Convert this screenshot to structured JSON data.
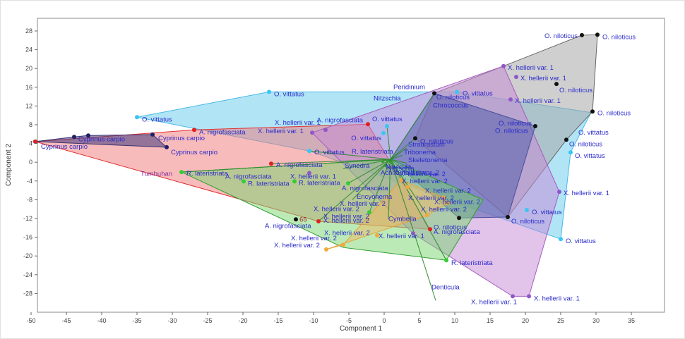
{
  "chart_data": {
    "type": "scatter",
    "title": "",
    "xlabel": "Component 1",
    "ylabel": "Component 2",
    "xlim": [
      -49.1,
      39.7
    ],
    "ylim": [
      -32.0,
      30.7
    ],
    "x_ticks": [
      -50,
      -45,
      -40,
      -35,
      -30,
      -25,
      -20,
      -15,
      -10,
      -5,
      0,
      5,
      10,
      15,
      20,
      25,
      30,
      35
    ],
    "y_ticks": [
      28,
      24,
      20,
      16,
      12,
      8,
      4,
      0,
      -4,
      -8,
      -12,
      -16,
      -20,
      -24,
      -28
    ],
    "grid": false,
    "label_color": "#2a2acb",
    "axis_color": "#444444",
    "frame_color": "#8a8a8a",
    "spoke_color": "#2e8b2e",
    "hulls": [
      {
        "name": "O. vittatus",
        "fill": "rgba(125,211,240,0.60)",
        "stroke": "#49b8e6",
        "pts": [
          [
            -35.0,
            9.6
          ],
          [
            -16.3,
            15.0
          ],
          [
            10.3,
            15.0
          ],
          [
            29.3,
            10.6
          ],
          [
            26.4,
            2.1
          ],
          [
            25.0,
            -16.4
          ],
          [
            -10.6,
            2.4
          ]
        ]
      },
      {
        "name": "A. nigrofasciata",
        "fill": "rgba(242,120,120,0.50)",
        "stroke": "#e03030",
        "pts": [
          [
            -49.4,
            4.4
          ],
          [
            -26.9,
            6.9
          ],
          [
            -2.3,
            8.1
          ],
          [
            6.5,
            -14.3
          ],
          [
            -9.3,
            -12.6
          ]
        ]
      },
      {
        "name": "Cyprinus carpio",
        "fill": "rgba(66,59,124,0.55)",
        "stroke": "#3a3470",
        "pts": [
          [
            -49.4,
            4.4
          ],
          [
            -43.9,
            5.4
          ],
          [
            -41.9,
            5.7
          ],
          [
            -32.8,
            5.9
          ],
          [
            -30.8,
            3.2
          ]
        ]
      },
      {
        "name": "O. niloticus",
        "fill": "rgba(168,168,168,0.55)",
        "stroke": "#666666",
        "pts": [
          [
            7.1,
            14.7
          ],
          [
            28.0,
            27.1
          ],
          [
            30.2,
            27.2
          ],
          [
            29.5,
            10.8
          ],
          [
            25.8,
            4.8
          ],
          [
            17.5,
            -11.7
          ],
          [
            4.4,
            5.1
          ]
        ]
      },
      {
        "name": "X. hellerii var. 1",
        "fill": "rgba(198,136,214,0.50)",
        "stroke": "#a65bc0",
        "pts": [
          [
            -10.2,
            6.3
          ],
          [
            16.9,
            20.5
          ],
          [
            24.8,
            -6.3
          ],
          [
            20.5,
            -28.6
          ],
          [
            18.2,
            -28.6
          ],
          [
            4.1,
            -15.2
          ]
        ]
      },
      {
        "name": "mixed-indigo",
        "fill": "rgba(88,94,172,0.55)",
        "stroke": "#4a4f9e",
        "pts": [
          [
            7.1,
            14.7
          ],
          [
            21.4,
            7.7
          ],
          [
            17.5,
            -11.7
          ],
          [
            10.6,
            -11.9
          ],
          [
            0.9,
            0.6
          ]
        ]
      },
      {
        "name": "R. lateristriata",
        "fill": "rgba(120,214,112,0.50)",
        "stroke": "#2f9e2f",
        "pts": [
          [
            -28.7,
            -2.1
          ],
          [
            0.9,
            0.6
          ],
          [
            14.0,
            -8.0
          ],
          [
            8.8,
            -20.9
          ],
          [
            -5.8,
            -18.2
          ]
        ]
      },
      {
        "name": "X. hellerii var. 2",
        "fill": "rgba(247,181,92,0.45)",
        "stroke": "#e8a23a",
        "pts": [
          [
            2.4,
            -3.8
          ],
          [
            8.4,
            -7.5
          ],
          [
            9.0,
            -8.7
          ],
          [
            6.1,
            -11.3
          ],
          [
            -8.2,
            -18.6
          ],
          [
            -5.8,
            -17.6
          ]
        ]
      }
    ],
    "spokes": {
      "hub": [
        0.9,
        0.6
      ],
      "targets": [
        [
          7.1,
          14.7
        ],
        [
          4.4,
          5.1
        ],
        [
          0.4,
          7.7
        ],
        [
          -10.6,
          2.4
        ],
        [
          -16.0,
          -0.3
        ],
        [
          -28.7,
          -2.1
        ],
        [
          -5.8,
          -1.4
        ],
        [
          -5.1,
          -4.5
        ],
        [
          -4.5,
          -8.0
        ],
        [
          0.6,
          -12.0
        ],
        [
          -9.3,
          -12.6
        ],
        [
          -2.1,
          -10.7
        ],
        [
          6.1,
          -11.3
        ],
        [
          8.8,
          -20.9
        ],
        [
          7.3,
          -29.5
        ],
        [
          3.2,
          3.0
        ],
        [
          2.6,
          1.5
        ],
        [
          3.2,
          -0.2
        ]
      ]
    },
    "groups": [
      {
        "name": "O. vittatus",
        "marker_color": "#38c6f4",
        "points": [
          [
            -35.0,
            9.6,
            "O. vittatus",
            7,
            6,
            "start"
          ],
          [
            -16.3,
            15.0,
            "O. vittatus",
            7,
            6,
            "start"
          ],
          [
            10.3,
            15.0,
            "O. vittatus",
            8,
            5,
            "start"
          ],
          [
            -10.6,
            2.4,
            "O. vittatus",
            7,
            5,
            "start"
          ],
          [
            0.4,
            7.7,
            "O. vittatus",
            -21,
            -7,
            "start"
          ],
          [
            -0.1,
            6.2,
            "O. vittatus",
            -3,
            10,
            "end"
          ],
          [
            26.4,
            2.1,
            "O. vittatus",
            6,
            8,
            "start"
          ],
          [
            20.2,
            -10.2,
            "O. vittatus",
            7,
            6,
            "start"
          ],
          [
            25.0,
            -16.4,
            "O. vittatus",
            7,
            6,
            "start"
          ]
        ]
      },
      {
        "name": "Cyprinus carpio",
        "marker_color": "#1f1f66",
        "points": [
          [
            -49.4,
            4.4,
            "Cyprinus carpio",
            8,
            10,
            "start"
          ],
          [
            -43.9,
            5.4,
            "Cyprinus carpio",
            6,
            6,
            "start"
          ],
          [
            -41.9,
            5.7,
            null,
            0,
            0,
            "start"
          ],
          [
            -32.8,
            5.9,
            "Cyprinus carpio",
            8,
            8,
            "start"
          ],
          [
            -30.8,
            3.2,
            "Cyprinus carpio",
            6,
            10,
            "start"
          ]
        ]
      },
      {
        "name": "O. niloticus",
        "marker_color": "#111111",
        "points": [
          [
            28.0,
            27.1,
            "O. niloticus",
            -6,
            4,
            "end"
          ],
          [
            30.2,
            27.2,
            "O. niloticus",
            7,
            6,
            "start"
          ],
          [
            24.4,
            16.7,
            "O. niloticus",
            4,
            12,
            "start"
          ],
          [
            29.5,
            10.8,
            "O. niloticus",
            7,
            5,
            "start"
          ],
          [
            21.4,
            7.7,
            "O. niloticus",
            -5,
            -1,
            "end"
          ],
          [
            25.8,
            4.8,
            "O. niloticus",
            4,
            9,
            "start"
          ],
          [
            7.1,
            14.7,
            null,
            0,
            0,
            "start"
          ],
          [
            4.4,
            5.1,
            "O. niloticus",
            7,
            7,
            "start"
          ],
          [
            17.5,
            -11.7,
            "O. niloticus",
            5,
            9,
            "start"
          ],
          [
            10.6,
            -11.9,
            null,
            0,
            0,
            "start"
          ],
          [
            -12.5,
            -12.2,
            "65",
            5,
            3,
            "start",
            "#a02020"
          ]
        ]
      },
      {
        "name": "A. nigrofasciata",
        "marker_color": "#e02020",
        "points": [
          [
            -49.4,
            4.4,
            null,
            0,
            0,
            "start"
          ],
          [
            -26.9,
            6.9,
            "A. nigrofasciata",
            7,
            6,
            "start"
          ],
          [
            -2.3,
            8.1,
            "A. nigrofasciata",
            -7,
            -3,
            "end"
          ],
          [
            -16.0,
            -0.3,
            "A. nigrofasciata",
            7,
            5,
            "start"
          ],
          [
            -9.3,
            -12.6,
            "X. hellerii var. 2",
            7,
            2,
            "start"
          ],
          [
            6.5,
            -14.3,
            "O. niloticus",
            5,
            0,
            "start"
          ]
        ]
      },
      {
        "name": "X. hellerii var. 1",
        "marker_color": "#9256c8",
        "points": [
          [
            -10.2,
            6.3,
            null,
            0,
            0,
            "start"
          ],
          [
            -8.3,
            6.9,
            null,
            0,
            0,
            "start"
          ],
          [
            -10.6,
            -2.3,
            null,
            0,
            0,
            "start"
          ],
          [
            4.1,
            -15.2,
            null,
            0,
            0,
            "start"
          ],
          [
            16.9,
            20.5,
            "X. hellerii var. 1",
            6,
            5,
            "start"
          ],
          [
            18.7,
            18.2,
            "X. hellerii var. 1",
            6,
            5,
            "start"
          ],
          [
            17.9,
            13.4,
            "X. hellerii var. 1",
            6,
            5,
            "start"
          ],
          [
            24.8,
            -6.3,
            "X. hellerii var. 1",
            6,
            5,
            "start"
          ],
          [
            18.2,
            -28.6,
            "X. hellerii var. 1",
            6,
            11,
            "end"
          ],
          [
            20.5,
            -28.6,
            "X. hellerii var. 1",
            7,
            6,
            "start"
          ]
        ]
      },
      {
        "name": "X. hellerii var. 2",
        "marker_color": "#f2a93b",
        "points": [
          [
            2.4,
            -3.8,
            null,
            0,
            0,
            "start"
          ],
          [
            3.3,
            -5.3,
            null,
            0,
            0,
            "start"
          ],
          [
            8.4,
            -7.5,
            null,
            0,
            0,
            "start"
          ],
          [
            9.0,
            -8.7,
            null,
            0,
            0,
            "start"
          ],
          [
            6.1,
            -11.3,
            null,
            0,
            0,
            "start"
          ],
          [
            -1.0,
            -15.6,
            null,
            0,
            0,
            "start"
          ],
          [
            -5.8,
            -17.6,
            null,
            0,
            0,
            "start"
          ],
          [
            -8.2,
            -18.6,
            null,
            0,
            0,
            "start"
          ]
        ]
      },
      {
        "name": "R. lateristriata",
        "marker_color": "#35cc35",
        "points": [
          [
            -28.7,
            -2.1,
            "R. lateristriata",
            7,
            5,
            "start"
          ],
          [
            -19.9,
            -4.1,
            "R. lateristriata",
            6,
            6,
            "start"
          ],
          [
            -12.7,
            -4.1,
            "R. lateristriata",
            6,
            5,
            "start"
          ],
          [
            -5.1,
            -4.5,
            null,
            0,
            0,
            "start"
          ],
          [
            -2.1,
            -10.7,
            null,
            0,
            0,
            "start"
          ],
          [
            8.8,
            -20.9,
            "R. lateristriata",
            7,
            7,
            "start"
          ]
        ]
      },
      {
        "name": "hub-cluster",
        "marker_color": "#2f9e2f",
        "small": true,
        "points": [
          [
            0.5,
            0.3,
            null,
            0,
            0,
            "start"
          ],
          [
            1.1,
            -0.1,
            null,
            0,
            0,
            "start"
          ],
          [
            0.2,
            -0.8,
            null,
            0,
            0,
            "start"
          ],
          [
            1.4,
            -1.2,
            null,
            0,
            0,
            "start"
          ],
          [
            -0.2,
            0.1,
            null,
            0,
            0,
            "start"
          ]
        ]
      }
    ],
    "extra_labels": [
      {
        "t": "Peridinium",
        "x": 1.3,
        "y": 15.6
      },
      {
        "t": "Nitzschia",
        "x": -1.5,
        "y": 13.2
      },
      {
        "t": "O. niloticus",
        "x": 7.4,
        "y": 13.4
      },
      {
        "t": "Chrococcus",
        "x": 6.9,
        "y": 11.7
      },
      {
        "t": "Straurastum",
        "x": 3.4,
        "y": 3.3
      },
      {
        "t": "Tribonema",
        "x": 2.8,
        "y": 1.7
      },
      {
        "t": "Skeletonema",
        "x": 3.4,
        "y": 0.0
      },
      {
        "t": "Synedra",
        "x": -5.6,
        "y": -1.2
      },
      {
        "t": "Navicula",
        "x": 0.2,
        "y": -1.4
      },
      {
        "t": "Nitzschia",
        "x": 0.4,
        "y": -1.8
      },
      {
        "t": "Achnanthidium",
        "x": -0.5,
        "y": -2.7
      },
      {
        "t": "X. hellerii var. 2",
        "x": 1.3,
        "y": -2.7
      },
      {
        "t": "Encyonema",
        "x": -3.9,
        "y": -7.8
      },
      {
        "t": "Cymbella",
        "x": 0.6,
        "y": -12.5
      },
      {
        "t": "Denticula",
        "x": 6.7,
        "y": -27.1
      },
      {
        "t": "Tumbuhan",
        "x": -34.5,
        "y": -2.9,
        "c": "#8a2d9e"
      },
      {
        "t": "O. vittatus",
        "x": 27.5,
        "y": 5.9
      },
      {
        "t": "O. niloticus",
        "x": 20.4,
        "y": 6.3,
        "a": "end"
      },
      {
        "t": "A. nigrofasciata",
        "x": -22.5,
        "y": -3.5
      },
      {
        "t": "X. hellerii var. 1",
        "x": -13.3,
        "y": -3.5
      },
      {
        "t": "A. nigrofasciata",
        "x": -16.9,
        "y": -14.0
      },
      {
        "t": "A. nigrofasciata",
        "x": -6.0,
        "y": -6.0
      },
      {
        "t": "A. nigrofasciata",
        "x": 7.0,
        "y": -15.3
      },
      {
        "t": "X. hellerii var. 1",
        "x": -15.5,
        "y": 8.0
      },
      {
        "t": "X. hellerii var. 1",
        "x": -17.9,
        "y": 6.2
      },
      {
        "t": "X. hellerii var. 1",
        "x": -0.8,
        "y": -16.2
      },
      {
        "t": "R. lateristriata",
        "x": -4.6,
        "y": 1.8
      },
      {
        "t": "X. hellerii var. 2",
        "x": 2.2,
        "y": -3.0
      },
      {
        "t": "X. hellerii var. 2",
        "x": 2.5,
        "y": -4.5
      },
      {
        "t": "X. hellerii var. 2",
        "x": 5.8,
        "y": -6.5
      },
      {
        "t": "X. hellerii var. 2",
        "x": 3.4,
        "y": -8.1
      },
      {
        "t": "X. hellerii var. 2",
        "x": 7.1,
        "y": -8.9
      },
      {
        "t": "X. hellerii var. 2",
        "x": 5.2,
        "y": -10.5
      },
      {
        "t": "X. hellerii var. 2",
        "x": -6.3,
        "y": -9.3
      },
      {
        "t": "X. hellerii var. 2",
        "x": -10.0,
        "y": -10.4
      },
      {
        "t": "X. hellerii var. 2",
        "x": -8.6,
        "y": -12.0
      },
      {
        "t": "X. hellerii var. 2",
        "x": -8.5,
        "y": -15.5
      },
      {
        "t": "X. hellerii var. 2",
        "x": -13.2,
        "y": -16.7
      },
      {
        "t": "X. hellerii var. 2",
        "x": -15.6,
        "y": -18.2
      }
    ]
  }
}
